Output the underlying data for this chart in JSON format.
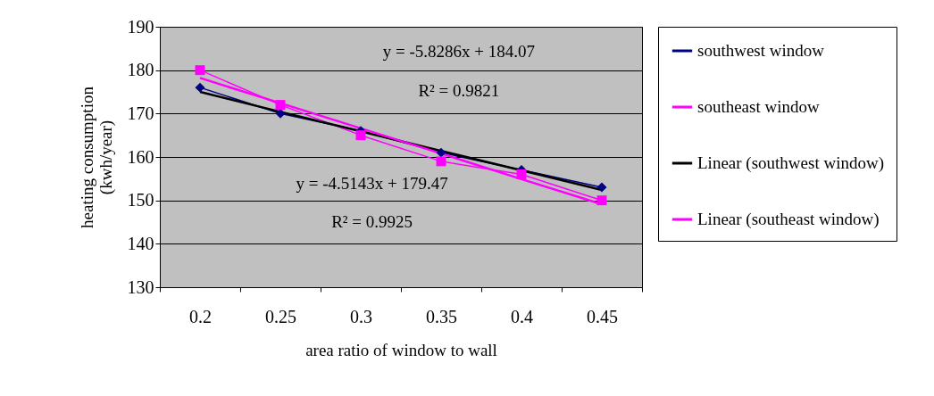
{
  "chart_data": {
    "type": "line",
    "xlabel": "area ratio of window to wall",
    "ylabel": "heating consumption (kwh/year)",
    "categories": [
      "0.2",
      "0.25",
      "0.3",
      "0.35",
      "0.4",
      "0.45"
    ],
    "series": [
      {
        "name": "southwest window",
        "color": "#000080",
        "marker": "diamond",
        "values": [
          176,
          170,
          166,
          161,
          157,
          153
        ]
      },
      {
        "name": "southeast window",
        "color": "#ff00ff",
        "marker": "square",
        "values": [
          180,
          172,
          165,
          159,
          156,
          150
        ]
      },
      {
        "name": "Linear (southwest window)",
        "color": "#000000",
        "marker": "none",
        "values": [
          175,
          170.4,
          165.9,
          161.4,
          156.9,
          152.4
        ]
      },
      {
        "name": "Linear (southeast window)",
        "color": "#ff00ff",
        "marker": "none",
        "values": [
          178.2,
          172.4,
          166.6,
          160.8,
          154.9,
          149.1
        ]
      }
    ],
    "ylim": [
      130,
      190
    ],
    "yticks": [
      130,
      140,
      150,
      160,
      170,
      180,
      190
    ],
    "grid": "y",
    "legend": "right",
    "annotations": [
      "y = -5.8286x + 184.07",
      "R² = 0.9821",
      "y = -4.5143x + 179.47",
      "R² = 0.9925"
    ]
  }
}
